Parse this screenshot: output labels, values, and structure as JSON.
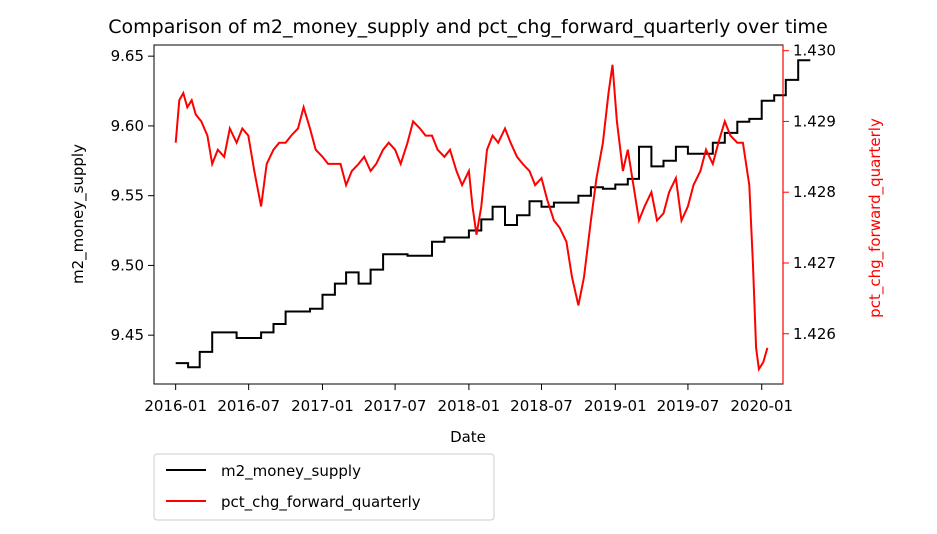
{
  "chart_data": {
    "type": "line",
    "title": "Comparison of m2_money_supply and pct_chg_forward_quarterly over time",
    "xlabel": "Date",
    "ylabel": "m2_money_supply",
    "ylabel_right": "pct_chg_forward_quarterly",
    "x_ticks": [
      "2016-01",
      "2016-07",
      "2017-01",
      "2017-07",
      "2018-01",
      "2018-07",
      "2019-01",
      "2019-07",
      "2020-01"
    ],
    "x_range": [
      "2015-11-08",
      "2020-02-23"
    ],
    "y_left_ticks": [
      "9.45",
      "9.50",
      "9.55",
      "9.60",
      "9.65"
    ],
    "y_left_range": [
      9.415,
      9.658
    ],
    "y_right_ticks": [
      "1.426",
      "1.427",
      "1.428",
      "1.429",
      "1.430"
    ],
    "y_right_range": [
      1.42529,
      1.43008
    ],
    "grid": false,
    "legend_position": "below-left",
    "series": [
      {
        "name": "m2_money_supply",
        "axis": "left",
        "color": "#000000",
        "points": [
          [
            "2016-01-01",
            9.43
          ],
          [
            "2016-02-01",
            9.43
          ],
          [
            "2016-02-01",
            9.427
          ],
          [
            "2016-03-01",
            9.427
          ],
          [
            "2016-03-01",
            9.438
          ],
          [
            "2016-04-01",
            9.438
          ],
          [
            "2016-04-01",
            9.452
          ],
          [
            "2016-06-01",
            9.452
          ],
          [
            "2016-06-01",
            9.448
          ],
          [
            "2016-08-01",
            9.448
          ],
          [
            "2016-08-01",
            9.452
          ],
          [
            "2016-09-01",
            9.452
          ],
          [
            "2016-09-01",
            9.458
          ],
          [
            "2016-10-01",
            9.458
          ],
          [
            "2016-10-01",
            9.467
          ],
          [
            "2016-12-01",
            9.467
          ],
          [
            "2016-12-01",
            9.469
          ],
          [
            "2017-01-01",
            9.469
          ],
          [
            "2017-01-01",
            9.479
          ],
          [
            "2017-02-01",
            9.479
          ],
          [
            "2017-02-01",
            9.487
          ],
          [
            "2017-03-01",
            9.487
          ],
          [
            "2017-03-01",
            9.495
          ],
          [
            "2017-04-01",
            9.495
          ],
          [
            "2017-04-01",
            9.487
          ],
          [
            "2017-05-01",
            9.487
          ],
          [
            "2017-05-01",
            9.497
          ],
          [
            "2017-06-01",
            9.497
          ],
          [
            "2017-06-01",
            9.508
          ],
          [
            "2017-08-01",
            9.508
          ],
          [
            "2017-08-01",
            9.507
          ],
          [
            "2017-10-01",
            9.507
          ],
          [
            "2017-10-01",
            9.517
          ],
          [
            "2017-11-01",
            9.517
          ],
          [
            "2017-11-01",
            9.52
          ],
          [
            "2018-01-01",
            9.52
          ],
          [
            "2018-01-01",
            9.525
          ],
          [
            "2018-02-01",
            9.525
          ],
          [
            "2018-02-01",
            9.533
          ],
          [
            "2018-03-01",
            9.533
          ],
          [
            "2018-03-01",
            9.542
          ],
          [
            "2018-04-01",
            9.542
          ],
          [
            "2018-04-01",
            9.529
          ],
          [
            "2018-05-01",
            9.529
          ],
          [
            "2018-05-01",
            9.536
          ],
          [
            "2018-06-01",
            9.536
          ],
          [
            "2018-06-01",
            9.546
          ],
          [
            "2018-07-01",
            9.546
          ],
          [
            "2018-07-01",
            9.542
          ],
          [
            "2018-08-01",
            9.542
          ],
          [
            "2018-08-01",
            9.545
          ],
          [
            "2018-10-01",
            9.545
          ],
          [
            "2018-10-01",
            9.55
          ],
          [
            "2018-11-01",
            9.55
          ],
          [
            "2018-11-01",
            9.556
          ],
          [
            "2018-12-01",
            9.556
          ],
          [
            "2018-12-01",
            9.555
          ],
          [
            "2019-01-01",
            9.555
          ],
          [
            "2019-01-01",
            9.558
          ],
          [
            "2019-02-01",
            9.558
          ],
          [
            "2019-02-01",
            9.562
          ],
          [
            "2019-03-01",
            9.562
          ],
          [
            "2019-03-01",
            9.585
          ],
          [
            "2019-04-01",
            9.585
          ],
          [
            "2019-04-01",
            9.571
          ],
          [
            "2019-05-01",
            9.571
          ],
          [
            "2019-05-01",
            9.575
          ],
          [
            "2019-06-01",
            9.575
          ],
          [
            "2019-06-01",
            9.585
          ],
          [
            "2019-07-01",
            9.585
          ],
          [
            "2019-07-01",
            9.58
          ],
          [
            "2019-09-01",
            9.58
          ],
          [
            "2019-09-01",
            9.588
          ],
          [
            "2019-10-01",
            9.588
          ],
          [
            "2019-10-01",
            9.595
          ],
          [
            "2019-11-01",
            9.595
          ],
          [
            "2019-11-01",
            9.603
          ],
          [
            "2019-12-01",
            9.603
          ],
          [
            "2019-12-01",
            9.605
          ],
          [
            "2020-01-01",
            9.605
          ],
          [
            "2020-01-01",
            9.618
          ],
          [
            "2020-02-01",
            9.618
          ],
          [
            "2020-02-01",
            9.622
          ],
          [
            "2020-03-01",
            9.622
          ],
          [
            "2020-03-01",
            9.633
          ],
          [
            "2020-04-01",
            9.633
          ],
          [
            "2020-04-01",
            9.647
          ],
          [
            "2020-05-01",
            9.647
          ]
        ]
      },
      {
        "name": "pct_chg_forward_quarterly",
        "axis": "right",
        "color": "#ff0000",
        "points": [
          [
            "2016-01-01",
            1.4287
          ],
          [
            "2016-01-10",
            1.4293
          ],
          [
            "2016-01-20",
            1.4294
          ],
          [
            "2016-01-30",
            1.4292
          ],
          [
            "2016-02-10",
            1.4293
          ],
          [
            "2016-02-20",
            1.4291
          ],
          [
            "2016-03-05",
            1.429
          ],
          [
            "2016-03-20",
            1.4288
          ],
          [
            "2016-04-01",
            1.4284
          ],
          [
            "2016-04-15",
            1.4286
          ],
          [
            "2016-05-01",
            1.4285
          ],
          [
            "2016-05-15",
            1.4289
          ],
          [
            "2016-06-01",
            1.4287
          ],
          [
            "2016-06-15",
            1.4289
          ],
          [
            "2016-06-30",
            1.4288
          ],
          [
            "2016-07-15",
            1.4283
          ],
          [
            "2016-08-01",
            1.4278
          ],
          [
            "2016-08-15",
            1.4284
          ],
          [
            "2016-09-01",
            1.4286
          ],
          [
            "2016-09-15",
            1.4287
          ],
          [
            "2016-10-01",
            1.4287
          ],
          [
            "2016-10-15",
            1.4288
          ],
          [
            "2016-11-01",
            1.4289
          ],
          [
            "2016-11-15",
            1.4292
          ],
          [
            "2016-12-01",
            1.4289
          ],
          [
            "2016-12-15",
            1.4286
          ],
          [
            "2017-01-01",
            1.4285
          ],
          [
            "2017-01-15",
            1.4284
          ],
          [
            "2017-02-01",
            1.4284
          ],
          [
            "2017-02-15",
            1.4284
          ],
          [
            "2017-03-01",
            1.4281
          ],
          [
            "2017-03-15",
            1.4283
          ],
          [
            "2017-04-01",
            1.4284
          ],
          [
            "2017-04-15",
            1.4285
          ],
          [
            "2017-05-01",
            1.4283
          ],
          [
            "2017-05-15",
            1.4284
          ],
          [
            "2017-06-01",
            1.4286
          ],
          [
            "2017-06-15",
            1.4287
          ],
          [
            "2017-07-01",
            1.4286
          ],
          [
            "2017-07-15",
            1.4284
          ],
          [
            "2017-08-01",
            1.4287
          ],
          [
            "2017-08-15",
            1.429
          ],
          [
            "2017-09-01",
            1.4289
          ],
          [
            "2017-09-15",
            1.4288
          ],
          [
            "2017-10-01",
            1.4288
          ],
          [
            "2017-10-15",
            1.4286
          ],
          [
            "2017-11-01",
            1.4285
          ],
          [
            "2017-11-15",
            1.4286
          ],
          [
            "2017-12-01",
            1.4283
          ],
          [
            "2017-12-15",
            1.4281
          ],
          [
            "2018-01-01",
            1.4283
          ],
          [
            "2018-01-10",
            1.4278
          ],
          [
            "2018-01-20",
            1.4274
          ],
          [
            "2018-02-01",
            1.4278
          ],
          [
            "2018-02-15",
            1.4286
          ],
          [
            "2018-03-01",
            1.4288
          ],
          [
            "2018-03-15",
            1.4287
          ],
          [
            "2018-04-01",
            1.4289
          ],
          [
            "2018-04-15",
            1.4287
          ],
          [
            "2018-05-01",
            1.4285
          ],
          [
            "2018-05-15",
            1.4284
          ],
          [
            "2018-06-01",
            1.4283
          ],
          [
            "2018-06-15",
            1.4281
          ],
          [
            "2018-07-01",
            1.4282
          ],
          [
            "2018-07-15",
            1.4279
          ],
          [
            "2018-08-01",
            1.4276
          ],
          [
            "2018-08-15",
            1.4275
          ],
          [
            "2018-09-01",
            1.4273
          ],
          [
            "2018-09-15",
            1.4268
          ],
          [
            "2018-10-01",
            1.4264
          ],
          [
            "2018-10-15",
            1.4268
          ],
          [
            "2018-11-01",
            1.4276
          ],
          [
            "2018-11-15",
            1.4282
          ],
          [
            "2018-12-01",
            1.4287
          ],
          [
            "2018-12-15",
            1.4294
          ],
          [
            "2018-12-25",
            1.4298
          ],
          [
            "2019-01-05",
            1.429
          ],
          [
            "2019-01-20",
            1.4283
          ],
          [
            "2019-02-01",
            1.4286
          ],
          [
            "2019-02-15",
            1.4281
          ],
          [
            "2019-03-01",
            1.4276
          ],
          [
            "2019-03-15",
            1.4278
          ],
          [
            "2019-04-01",
            1.428
          ],
          [
            "2019-04-15",
            1.4276
          ],
          [
            "2019-05-01",
            1.4277
          ],
          [
            "2019-05-15",
            1.428
          ],
          [
            "2019-06-01",
            1.4282
          ],
          [
            "2019-06-15",
            1.4276
          ],
          [
            "2019-07-01",
            1.4278
          ],
          [
            "2019-07-15",
            1.4281
          ],
          [
            "2019-08-01",
            1.4283
          ],
          [
            "2019-08-15",
            1.4286
          ],
          [
            "2019-09-01",
            1.4284
          ],
          [
            "2019-09-15",
            1.4287
          ],
          [
            "2019-10-01",
            1.429
          ],
          [
            "2019-10-15",
            1.4288
          ],
          [
            "2019-11-01",
            1.4287
          ],
          [
            "2019-11-15",
            1.4287
          ],
          [
            "2019-12-01",
            1.4281
          ],
          [
            "2019-12-10",
            1.427
          ],
          [
            "2019-12-18",
            1.4258
          ],
          [
            "2019-12-25",
            1.4255
          ],
          [
            "2020-01-05",
            1.4256
          ],
          [
            "2020-01-15",
            1.4258
          ]
        ]
      }
    ],
    "legend": [
      {
        "label": "m2_money_supply",
        "color": "#000000"
      },
      {
        "label": "pct_chg_forward_quarterly",
        "color": "#ff0000"
      }
    ]
  }
}
